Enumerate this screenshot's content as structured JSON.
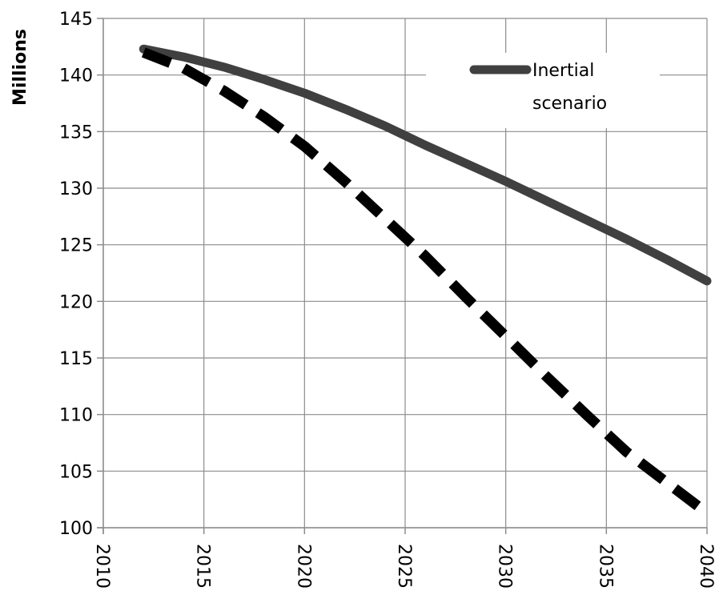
{
  "chart_data": {
    "type": "line",
    "title": "",
    "xlabel": "",
    "ylabel": "Millions",
    "xlim": [
      2010,
      2040
    ],
    "ylim": [
      100,
      145
    ],
    "x_ticks": [
      "2010",
      "2015",
      "2020",
      "2025",
      "2030",
      "2035",
      "2040"
    ],
    "y_ticks": [
      "100",
      "105",
      "110",
      "115",
      "120",
      "125",
      "130",
      "135",
      "140",
      "145"
    ],
    "grid": true,
    "legend_position": "top-right",
    "series": [
      {
        "name": "Inertial scenario",
        "style": "solid",
        "color": "#404040",
        "x": [
          2012,
          2014,
          2016,
          2018,
          2020,
          2022,
          2024,
          2026,
          2028,
          2030,
          2032,
          2034,
          2036,
          2038,
          2040
        ],
        "y": [
          142.3,
          141.6,
          140.7,
          139.6,
          138.4,
          137.0,
          135.5,
          133.8,
          132.2,
          130.6,
          128.9,
          127.2,
          125.5,
          123.7,
          121.8
        ]
      },
      {
        "style": "dashed",
        "color": "#000000",
        "x": [
          2012,
          2014,
          2016,
          2018,
          2020,
          2022,
          2024,
          2026,
          2028,
          2030,
          2032,
          2034,
          2036,
          2038,
          2040
        ],
        "y": [
          142.0,
          140.6,
          138.6,
          136.3,
          133.7,
          130.6,
          127.3,
          124.0,
          120.4,
          116.9,
          113.4,
          110.0,
          106.7,
          104.0,
          101.3
        ]
      }
    ]
  }
}
